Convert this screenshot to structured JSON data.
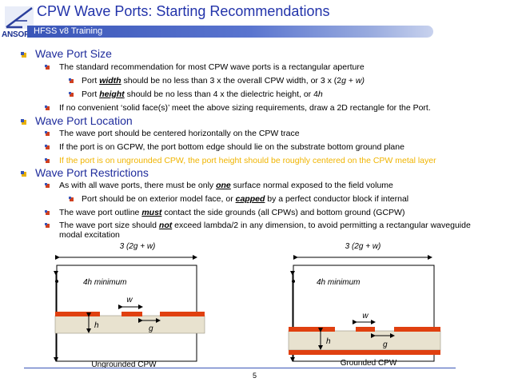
{
  "header": {
    "title": "CPW Wave Ports:  Starting Recommendations",
    "bar_label": "HFSS v8 Training",
    "logo_text": "ANSOFT"
  },
  "sections": {
    "size": {
      "heading": "Wave Port Size",
      "l1": "The standard recommendation for most CPW wave ports is a rectangular aperture",
      "l2a": "Port ",
      "l2b": "width",
      "l2c": " should be no less than 3 x the overall CPW width, or 3 x (2",
      "l2d": "g",
      "l2e": " + ",
      "l2f": "w)",
      "l3a": "Port ",
      "l3b": "height",
      "l3c": " should be no less than 4 x the dielectric height, or 4",
      "l3d": "h",
      "l4": "If no convenient ‘solid face(s)’ meet the above sizing requirements, draw a 2D rectangle for the Port."
    },
    "location": {
      "heading": "Wave Port Location",
      "l1": "The wave port should be centered horizontally on the CPW trace",
      "l2": "If the port is on GCPW, the port bottom edge should lie on the substrate bottom ground plane",
      "l3": "If the port is on ungrounded CPW, the port height should be roughly centered on the CPW metal layer"
    },
    "restrictions": {
      "heading": "Wave Port Restrictions",
      "l1a": "As with all wave ports, there must be only ",
      "l1b": "one",
      "l1c": " surface normal exposed to the field volume",
      "l2a": "Port should be on exterior model face, or ",
      "l2b": "capped",
      "l2c": " by a perfect conductor block if internal",
      "l3a": "The wave port outline ",
      "l3b": "must",
      "l3c": "  contact the side grounds (all CPWs) and bottom ground (GCPW)",
      "l4a": "The wave port size should ",
      "l4b": "not",
      "l4c": " exceed lambda/2 in any dimension, to avoid permitting a rectangular waveguide",
      "l5": "modal excitation"
    }
  },
  "diagrams": {
    "left": {
      "width_label": "3 (2g + w)",
      "height_label": "4h minimum",
      "w_label": "w",
      "h_label": "h",
      "g_label": "g",
      "caption": "Ungrounded CPW"
    },
    "right": {
      "width_label": "3 (2g + w)",
      "height_label": "4h minimum",
      "w_label": "w",
      "h_label": "h",
      "g_label": "g",
      "caption": "Grounded CPW"
    }
  },
  "footer": {
    "page_number": "5"
  },
  "colors": {
    "title": "#2233aa",
    "heading": "#1f2c9c",
    "highlight": "#f0b400",
    "metal": "#e04010",
    "substrate": "#e8e2cf",
    "bullet_square": "#e8b000",
    "bullet_sub": "#d04020"
  }
}
